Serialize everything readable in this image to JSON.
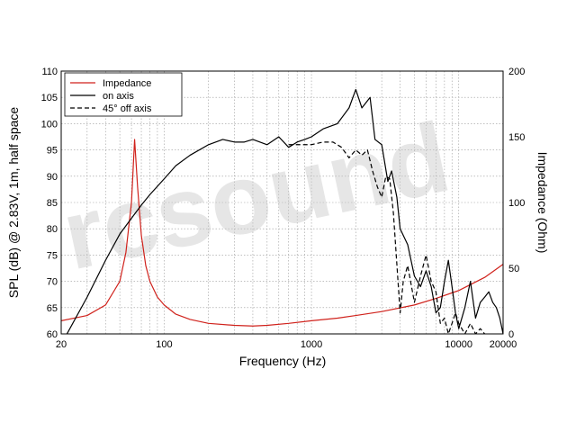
{
  "chart_data": {
    "type": "line",
    "xlabel": "Frequency (Hz)",
    "ylabel": "SPL (dB) @ 2.83V, 1m, half space",
    "y2label": "Impedance (Ohm)",
    "xscale": "log",
    "xlim": [
      20,
      20000
    ],
    "ylim": [
      60,
      110
    ],
    "y2lim": [
      0,
      200
    ],
    "grid": true,
    "legend_position": "top-left",
    "x_tick_labels": [
      "20",
      "100",
      "1000",
      "10000",
      "20000"
    ],
    "y_tick_labels": [
      "60",
      "65",
      "70",
      "75",
      "80",
      "85",
      "90",
      "95",
      "100",
      "105",
      "110"
    ],
    "y2_tick_labels": [
      "0",
      "50",
      "100",
      "150",
      "200"
    ],
    "watermark": "rcsound",
    "series": [
      {
        "name": "Impedance",
        "axis": "right",
        "color": "#d0221c",
        "dash": "solid",
        "x": [
          20,
          30,
          40,
          50,
          55,
          60,
          63,
          66,
          70,
          75,
          80,
          90,
          100,
          120,
          150,
          200,
          300,
          400,
          500,
          700,
          1000,
          1500,
          2000,
          3000,
          5000,
          7000,
          10000,
          15000,
          20000
        ],
        "y": [
          10,
          14,
          22,
          40,
          62,
          100,
          148,
          112,
          75,
          52,
          40,
          28,
          22,
          15,
          11,
          8,
          6.5,
          6,
          6.5,
          8,
          10,
          12,
          14,
          17,
          22,
          27,
          33,
          43,
          53
        ]
      },
      {
        "name": "on axis",
        "axis": "left",
        "color": "#000000",
        "dash": "solid",
        "x": [
          20,
          30,
          40,
          50,
          60,
          70,
          80,
          100,
          120,
          150,
          200,
          250,
          300,
          350,
          400,
          500,
          600,
          700,
          800,
          900,
          1000,
          1200,
          1500,
          1800,
          2000,
          2200,
          2500,
          2700,
          3000,
          3300,
          3500,
          3800,
          4000,
          4500,
          5000,
          5500,
          6000,
          6500,
          7000,
          7500,
          8000,
          8500,
          9000,
          9500,
          10000,
          11000,
          12000,
          13000,
          14000,
          15000,
          16000,
          17000,
          18000,
          19000,
          20000
        ],
        "y": [
          58,
          67,
          74,
          79,
          82,
          84.5,
          86.5,
          89.5,
          92,
          94,
          96,
          97,
          96.5,
          96.5,
          97,
          96,
          97.5,
          95.5,
          96.5,
          97,
          97.5,
          99,
          100,
          103,
          106.5,
          103,
          105,
          97,
          96,
          89,
          91,
          86,
          80,
          77,
          71,
          69,
          72,
          69,
          64,
          65,
          70,
          74,
          69,
          64,
          61,
          65,
          70,
          63,
          66,
          67,
          68,
          66,
          65,
          63,
          60
        ]
      },
      {
        "name": "45° off axis",
        "axis": "left",
        "color": "#000000",
        "dash": "dashed",
        "x": [
          700,
          800,
          900,
          1000,
          1200,
          1400,
          1600,
          1800,
          2000,
          2200,
          2400,
          2600,
          2800,
          3000,
          3200,
          3400,
          3600,
          4000,
          4200,
          4500,
          5000,
          5500,
          6000,
          6500,
          7000,
          7500,
          8000,
          8500,
          9000,
          9500,
          10000,
          11000,
          12000,
          13000,
          14000,
          15000
        ],
        "y": [
          96,
          96,
          96,
          96,
          96.5,
          96.5,
          95.5,
          93.5,
          95,
          94,
          95,
          91,
          88,
          86,
          90,
          89.5,
          83,
          64,
          70,
          73,
          66,
          71,
          75,
          70,
          68,
          62,
          63,
          60,
          62,
          64,
          62,
          60,
          62,
          60,
          61,
          60
        ]
      }
    ]
  }
}
